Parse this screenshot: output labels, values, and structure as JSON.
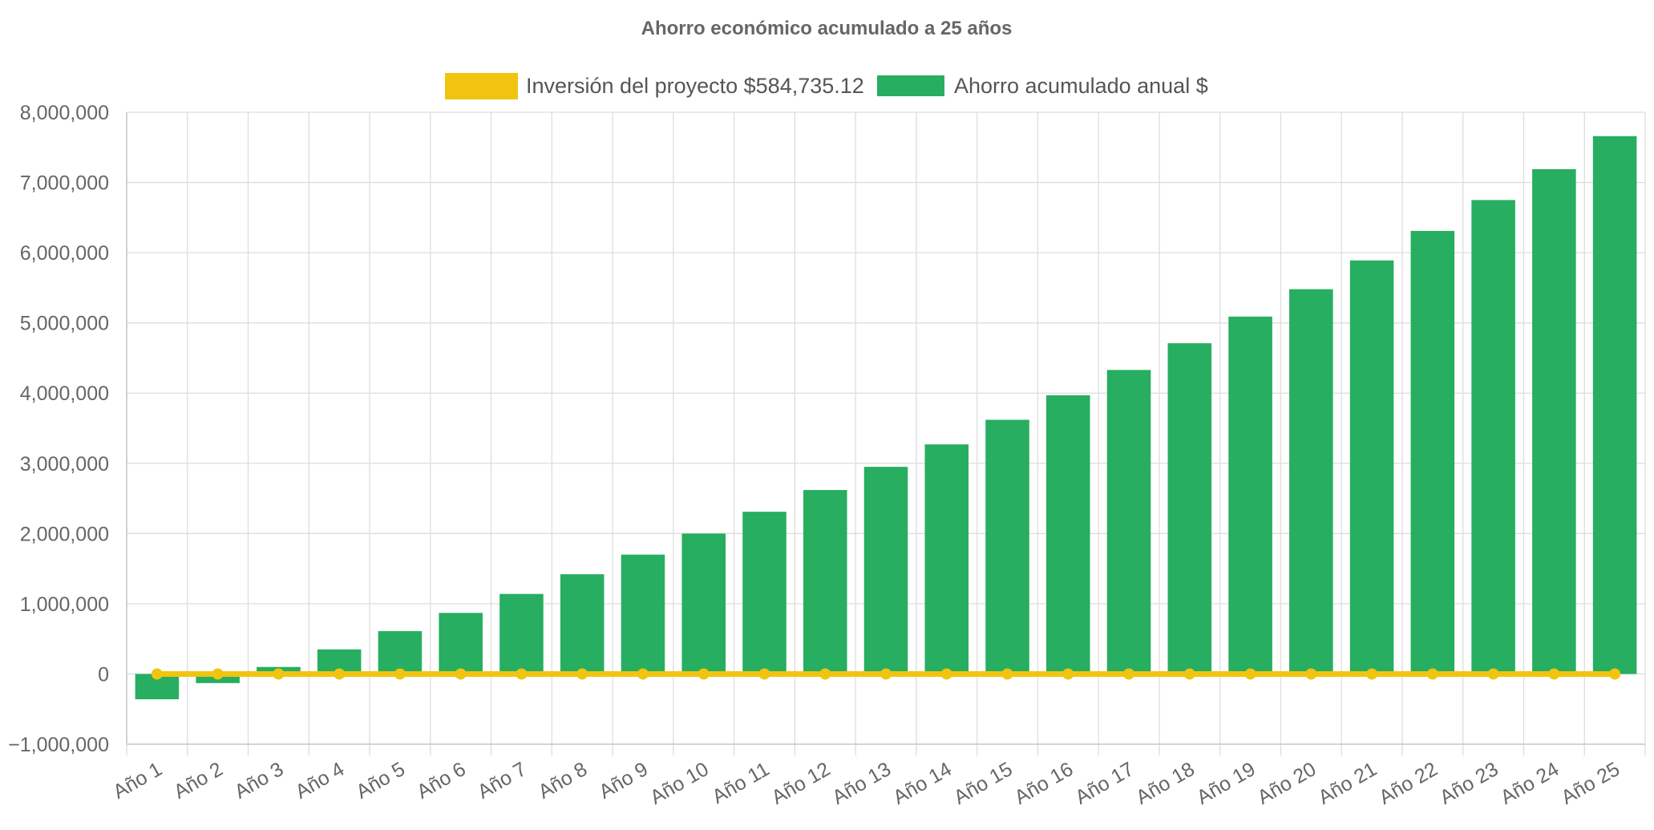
{
  "chart_data": {
    "type": "bar",
    "title": "Ahorro económico acumulado a 25 años",
    "categories": [
      "Año 1",
      "Año 2",
      "Año 3",
      "Año 4",
      "Año 5",
      "Año 6",
      "Año 7",
      "Año 8",
      "Año 9",
      "Año 10",
      "Año 11",
      "Año 12",
      "Año 13",
      "Año 14",
      "Año 15",
      "Año 16",
      "Año 17",
      "Año 18",
      "Año 19",
      "Año 20",
      "Año 21",
      "Año 22",
      "Año 23",
      "Año 24",
      "Año 25"
    ],
    "series": [
      {
        "name": "Inversión del proyecto $584,735.12",
        "type": "line",
        "color": "#f1c40f",
        "values": [
          0,
          0,
          0,
          0,
          0,
          0,
          0,
          0,
          0,
          0,
          0,
          0,
          0,
          0,
          0,
          0,
          0,
          0,
          0,
          0,
          0,
          0,
          0,
          0,
          0
        ]
      },
      {
        "name": "Ahorro acumulado anual $",
        "type": "bar",
        "color": "#27ae60",
        "values": [
          -360000,
          -130000,
          100000,
          350000,
          610000,
          870000,
          1140000,
          1420000,
          1700000,
          2000000,
          2310000,
          2620000,
          2950000,
          3270000,
          3620000,
          3970000,
          4330000,
          4710000,
          5090000,
          5480000,
          5890000,
          6310000,
          6750000,
          7190000,
          7660000
        ]
      }
    ],
    "y_ticks": [
      "8,000,000",
      "7,000,000",
      "6,000,000",
      "5,000,000",
      "4,000,000",
      "3,000,000",
      "2,000,000",
      "1,000,000",
      "0",
      "−1,000,000"
    ],
    "ylim": [
      -1000000,
      8000000
    ],
    "grid": true,
    "legend_position": "top"
  }
}
